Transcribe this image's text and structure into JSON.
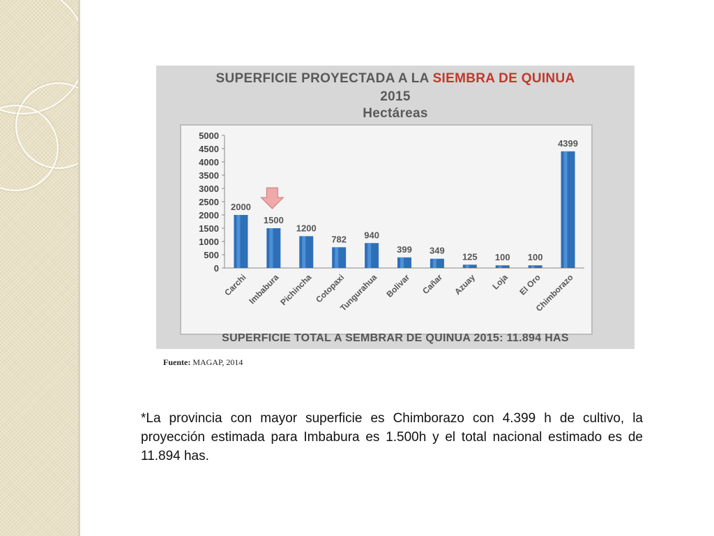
{
  "slide": {
    "source_label": "Fuente:",
    "source_value": "MAGAP, 2014",
    "description": "*La provincia con mayor superficie es Chimborazo con 4.399 h de cultivo, la proyección estimada para Imbabura es 1.500h y el total nacional estimado es de 11.894 has."
  },
  "chart_data": {
    "type": "bar",
    "title_part1": "SUPERFICIE PROYECTADA A LA ",
    "title_part2": "SIEMBRA DE QUINUA",
    "title_line2": "2015",
    "subtitle": "Hectáreas",
    "footer": "SUPERFICIE TOTAL A SEMBRAR DE QUINUA 2015:  11.894 HAS",
    "categories": [
      "Carchi",
      "Imbabura",
      "Pichincha",
      "Cotopaxi",
      "Tungurahua",
      "Bolivar",
      "Cañar",
      "Azuay",
      "Loja",
      "El Oro",
      "Chimborazo"
    ],
    "values": [
      2000,
      1500,
      1200,
      782,
      940,
      399,
      349,
      125,
      100,
      100,
      4399
    ],
    "ylim": [
      0,
      5000
    ],
    "yticks": [
      0,
      500,
      1000,
      1500,
      2000,
      2500,
      3000,
      3500,
      4000,
      4500,
      5000
    ],
    "highlight_category": "Imbabura",
    "colors": {
      "bar": "#2e6fb8",
      "bar_highlight": "#5aa0e6",
      "arrow": "#f0a8a8",
      "title_accent": "#c0392b"
    }
  }
}
